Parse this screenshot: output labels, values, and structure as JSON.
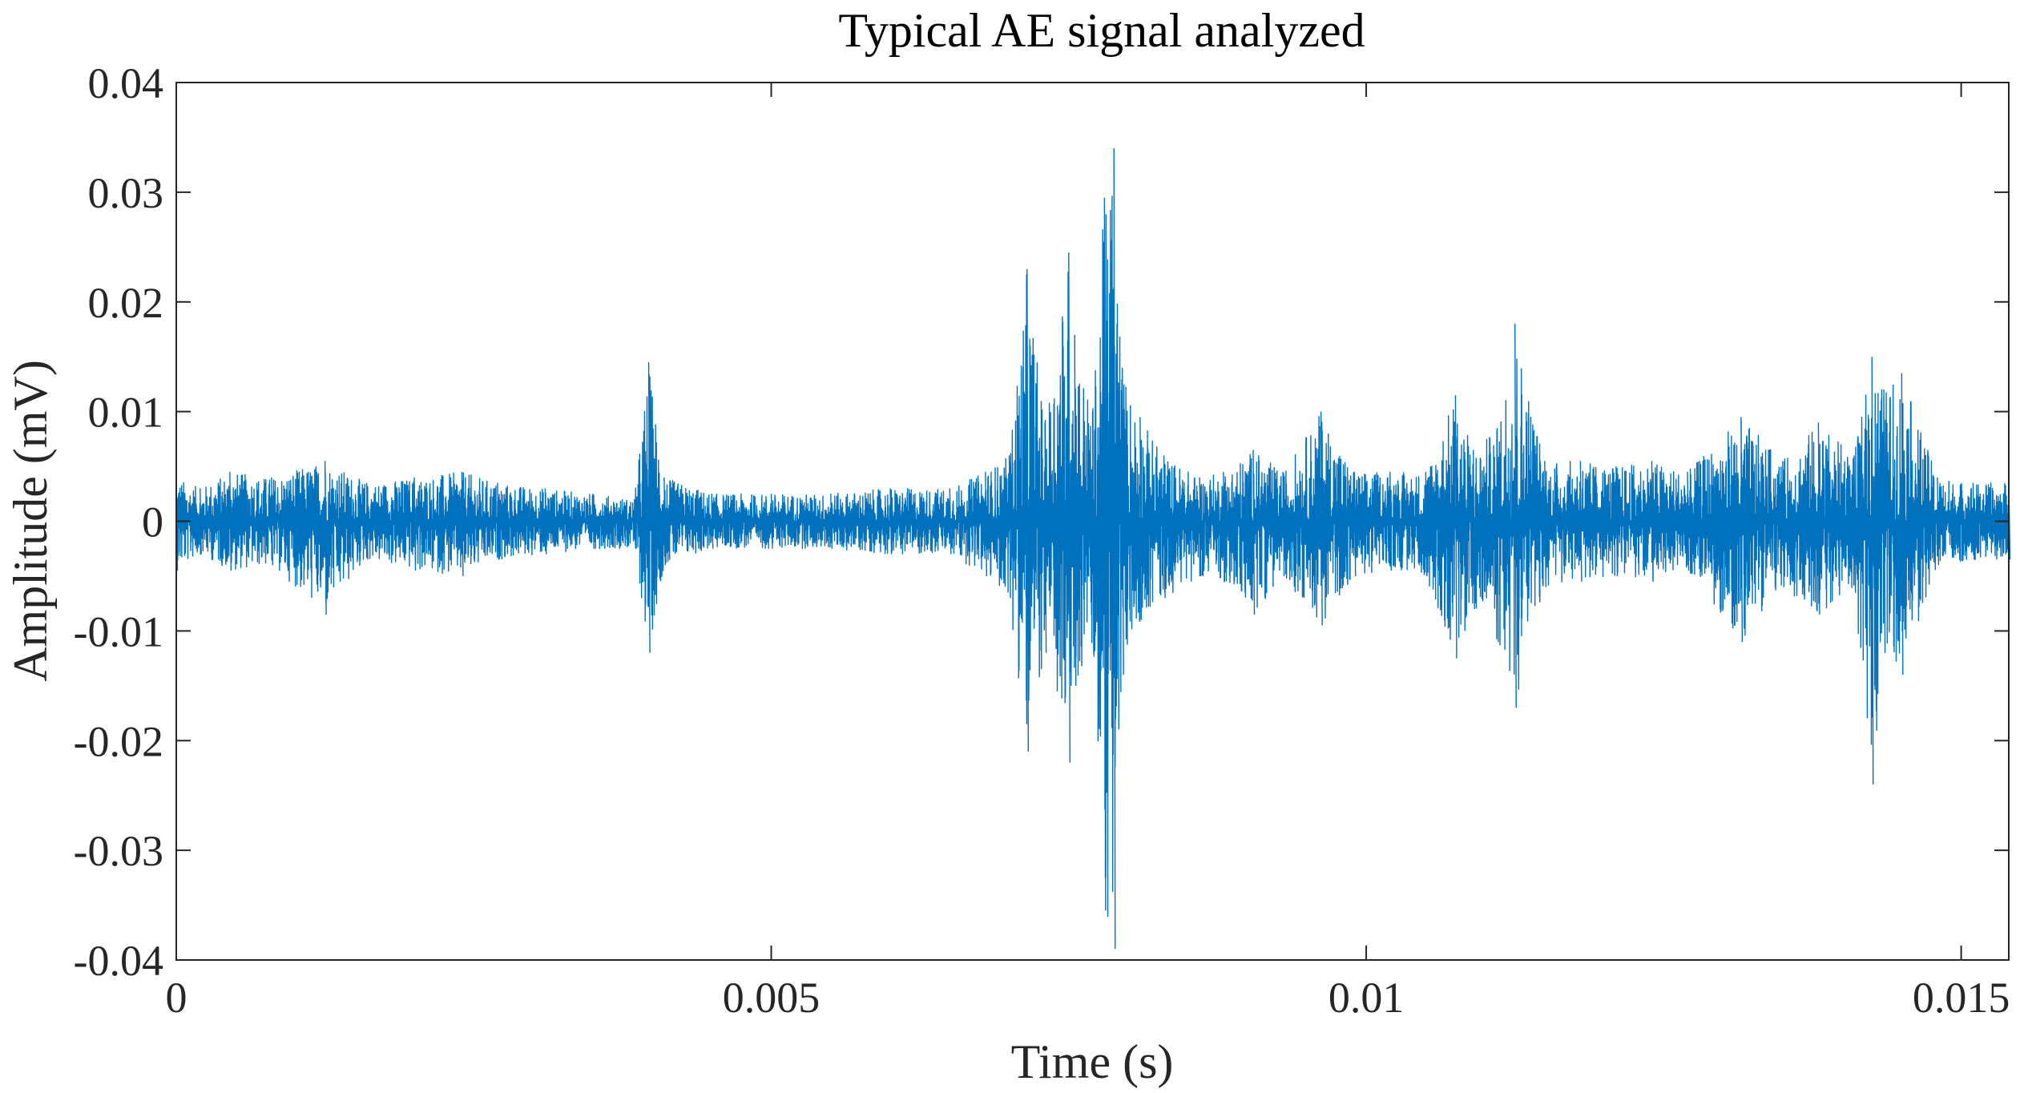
{
  "chart_data": {
    "type": "line",
    "title": "Typical AE signal analyzed",
    "xlabel": "Time (s)",
    "ylabel": "Amplitude (mV)",
    "xlim": [
      0,
      0.0154
    ],
    "ylim": [
      -0.04,
      0.04
    ],
    "xticks": [
      0,
      0.005,
      0.01,
      0.015
    ],
    "xtick_labels": [
      "0",
      "0.005",
      "0.01",
      "0.015"
    ],
    "yticks": [
      0.04,
      0.03,
      0.02,
      0.01,
      0,
      -0.01,
      -0.02,
      -0.03,
      -0.04
    ],
    "ytick_labels": [
      "0.04",
      "0.03",
      "0.02",
      "0.01",
      "0",
      "-0.01",
      "-0.02",
      "-0.03",
      "-0.04"
    ],
    "grid": false,
    "legend": "none",
    "series": [
      {
        "color": "#0072BD",
        "x": [
          0,
          0.0002,
          0.00045,
          0.0008,
          0.00125,
          0.0016,
          0.002,
          0.0024,
          0.0027,
          0.0031,
          0.0035,
          0.00385,
          0.00397,
          0.0041,
          0.0045,
          0.005,
          0.0055,
          0.006,
          0.0065,
          0.0068,
          0.007,
          0.00715,
          0.0073,
          0.0075,
          0.00755,
          0.0077,
          0.0078,
          0.00788,
          0.00795,
          0.0081,
          0.0083,
          0.0086,
          0.0088,
          0.00905,
          0.0093,
          0.00962,
          0.0099,
          0.0102,
          0.0105,
          0.01075,
          0.0109,
          0.0111,
          0.01125,
          0.0115,
          0.0118,
          0.0121,
          0.0124,
          0.0127,
          0.01315,
          0.0135,
          0.0138,
          0.0141,
          0.01425,
          0.01435,
          0.0145,
          0.0148,
          0.0151,
          0.0154
        ],
        "upper": [
          0.004,
          0.003,
          0.0045,
          0.004,
          0.0055,
          0.0035,
          0.004,
          0.0045,
          0.0035,
          0.003,
          0.0025,
          0.002,
          0.0145,
          0.004,
          0.0025,
          0.0025,
          0.0025,
          0.003,
          0.003,
          0.0045,
          0.006,
          0.023,
          0.009,
          0.0245,
          0.017,
          0.01,
          0.0295,
          0.034,
          0.014,
          0.0095,
          0.006,
          0.004,
          0.0045,
          0.0065,
          0.0045,
          0.01,
          0.0045,
          0.0045,
          0.0045,
          0.0115,
          0.0065,
          0.0085,
          0.018,
          0.0055,
          0.0055,
          0.005,
          0.0055,
          0.0045,
          0.0095,
          0.0055,
          0.009,
          0.006,
          0.015,
          0.012,
          0.0135,
          0.004,
          0.0035,
          0.0035
        ],
        "lower": [
          -0.0045,
          -0.003,
          -0.0045,
          -0.004,
          -0.0085,
          -0.0035,
          -0.0045,
          -0.005,
          -0.0035,
          -0.003,
          -0.0025,
          -0.0025,
          -0.012,
          -0.004,
          -0.0025,
          -0.0025,
          -0.0025,
          -0.003,
          -0.003,
          -0.005,
          -0.007,
          -0.021,
          -0.012,
          -0.022,
          -0.015,
          -0.012,
          -0.0355,
          -0.039,
          -0.014,
          -0.009,
          -0.007,
          -0.005,
          -0.0055,
          -0.0085,
          -0.005,
          -0.0095,
          -0.005,
          -0.0045,
          -0.005,
          -0.0125,
          -0.008,
          -0.011,
          -0.017,
          -0.006,
          -0.0055,
          -0.005,
          -0.0055,
          -0.0045,
          -0.011,
          -0.006,
          -0.0085,
          -0.006,
          -0.024,
          -0.012,
          -0.014,
          -0.004,
          -0.0035,
          -0.0035
        ]
      }
    ]
  }
}
